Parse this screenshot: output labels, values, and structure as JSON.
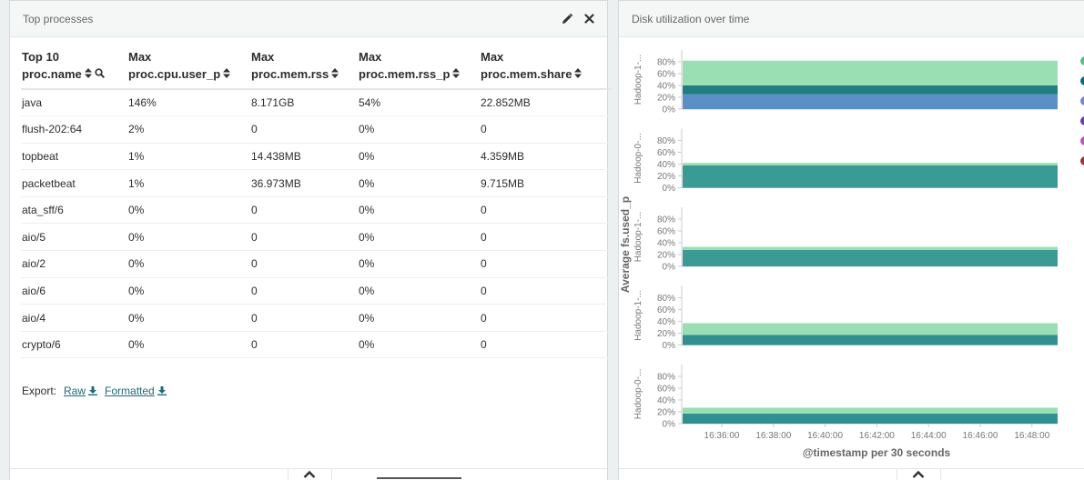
{
  "left_panel": {
    "title": "Top processes",
    "table": {
      "headers": [
        {
          "line1": "Top 10",
          "line2": "proc.name"
        },
        {
          "line1": "Max",
          "line2": "proc.cpu.user_p"
        },
        {
          "line1": "Max",
          "line2": "proc.mem.rss"
        },
        {
          "line1": "Max",
          "line2": "proc.mem.rss_p"
        },
        {
          "line1": "Max",
          "line2": "proc.mem.share"
        }
      ],
      "rows": [
        [
          "java",
          "146%",
          "8.171GB",
          "54%",
          "22.852MB"
        ],
        [
          "flush-202:64",
          "2%",
          "0",
          "0%",
          "0"
        ],
        [
          "topbeat",
          "1%",
          "14.438MB",
          "0%",
          "4.359MB"
        ],
        [
          "packetbeat",
          "1%",
          "36.973MB",
          "0%",
          "9.715MB"
        ],
        [
          "ata_sff/6",
          "0%",
          "0",
          "0%",
          "0"
        ],
        [
          "aio/5",
          "0%",
          "0",
          "0%",
          "0"
        ],
        [
          "aio/2",
          "0%",
          "0",
          "0%",
          "0"
        ],
        [
          "aio/6",
          "0%",
          "0",
          "0%",
          "0"
        ],
        [
          "aio/4",
          "0%",
          "0",
          "0%",
          "0"
        ],
        [
          "crypto/6",
          "0%",
          "0",
          "0%",
          "0"
        ]
      ]
    },
    "export": {
      "label": "Export:",
      "raw": "Raw",
      "formatted": "Formatted"
    }
  },
  "right_panel": {
    "title": "Disk utilization over time"
  },
  "chart_data": {
    "type": "area",
    "stacked": true,
    "ylabel": "Average fs.used_p",
    "xlabel": "@timestamp per 30 seconds",
    "y_ticks": [
      "80%",
      "60%",
      "40%",
      "20%",
      "0%"
    ],
    "ylim": [
      0,
      100
    ],
    "x_ticks": [
      "16:36:00",
      "16:38:00",
      "16:40:00",
      "16:42:00",
      "16:44:00",
      "16:46:00",
      "16:48:00"
    ],
    "legend_colors": [
      "#57c17b",
      "#006e8a",
      "#6f87d8",
      "#663db8",
      "#bc52bc",
      "#9e3533"
    ],
    "colors": {
      "light": "#9adfb3",
      "teal": "#3a9b95",
      "dark_teal": "#1f7e7e",
      "blue": "#5b8fc7"
    },
    "facets": [
      {
        "label": "Hadoop-1-...",
        "layers": [
          {
            "color": "#5b8fc7",
            "value": 25
          },
          {
            "color": "#1f7e7e",
            "value": 15
          },
          {
            "color": "#9adfb3",
            "value": 42
          }
        ]
      },
      {
        "label": "Hadoop-0-...",
        "layers": [
          {
            "color": "#3a9b95",
            "value": 38
          },
          {
            "color": "#9adfb3",
            "value": 4
          }
        ]
      },
      {
        "label": "Hadoop-1-...",
        "layers": [
          {
            "color": "#3a9b95",
            "value": 28
          },
          {
            "color": "#9adfb3",
            "value": 5
          }
        ]
      },
      {
        "label": "Hadoop-1-...",
        "layers": [
          {
            "color": "#2e9090",
            "value": 17
          },
          {
            "color": "#9adfb3",
            "value": 20
          }
        ]
      },
      {
        "label": "Hadoop-0-...",
        "layers": [
          {
            "color": "#2e9090",
            "value": 17
          },
          {
            "color": "#9adfb3",
            "value": 10
          }
        ]
      }
    ]
  }
}
